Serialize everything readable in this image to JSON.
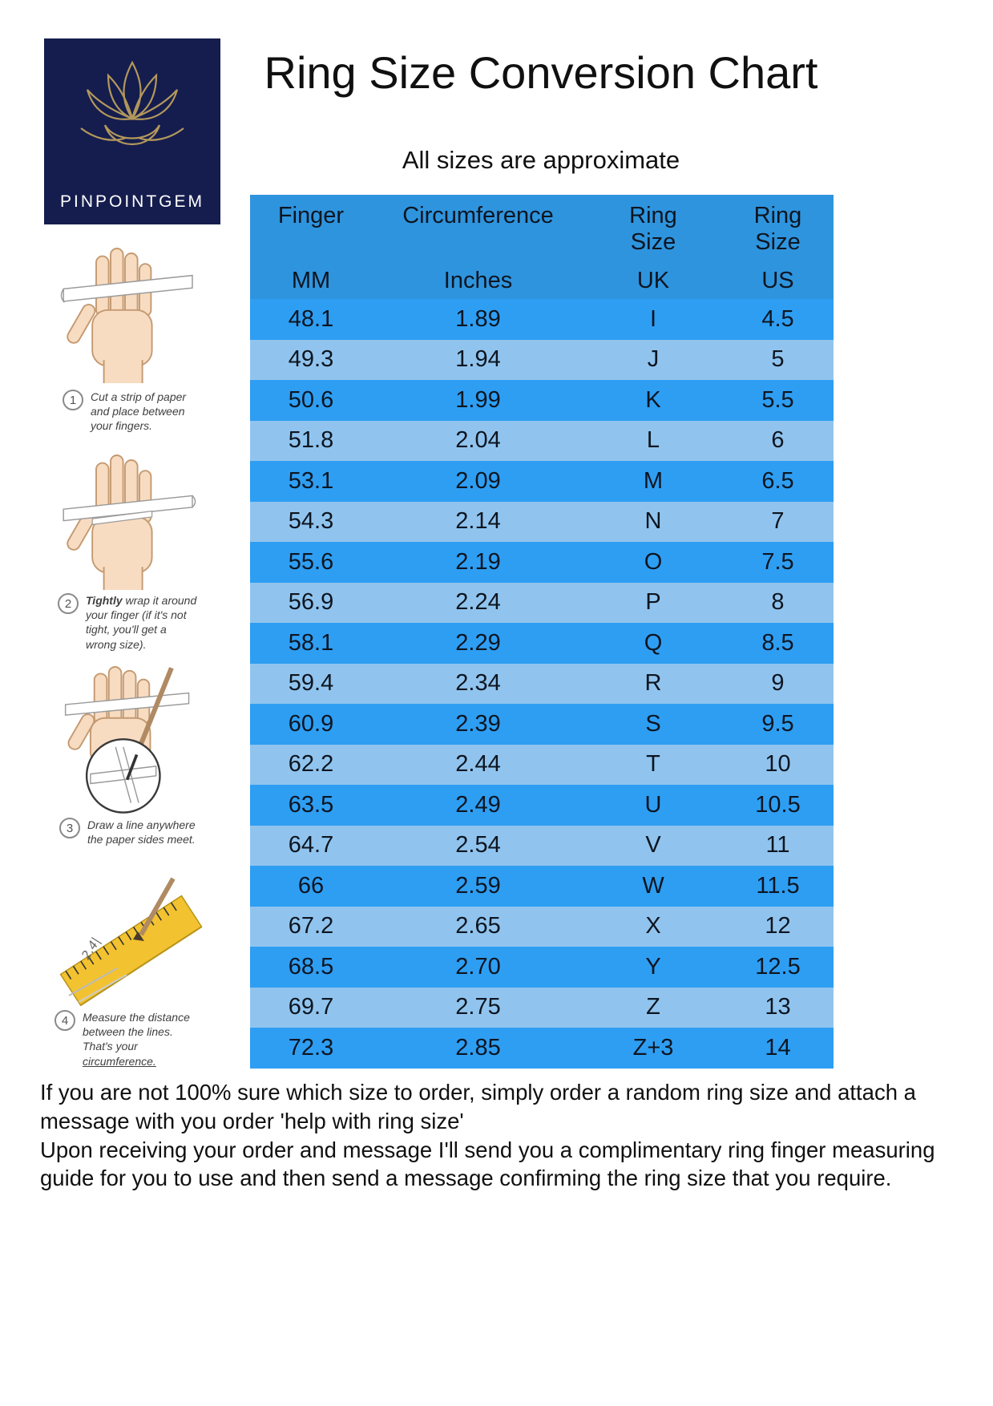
{
  "colors": {
    "logo_navy": "#151d4e",
    "logo_gold": "#b3985c",
    "header_blue": "#2f94de",
    "row_dark": "#2e9ef3",
    "row_light": "#90c4ee"
  },
  "logo": {
    "brand": "PINPOINTGEM"
  },
  "header": {
    "title": "Ring Size Conversion Chart",
    "subtitle": "All sizes are approximate"
  },
  "table": {
    "headers": [
      {
        "top": "Finger",
        "bottom": "MM"
      },
      {
        "top": "Circumference",
        "bottom": "Inches"
      },
      {
        "top": "Ring\nSize",
        "bottom": "UK"
      },
      {
        "top": "Ring\nSize",
        "bottom": "US"
      }
    ]
  },
  "chart_data": {
    "type": "table",
    "title": "Ring Size Conversion Chart",
    "columns": [
      "Finger MM",
      "Circumference Inches",
      "Ring Size UK",
      "Ring Size US"
    ],
    "rows": [
      [
        "48.1",
        "1.89",
        "I",
        "4.5"
      ],
      [
        "49.3",
        "1.94",
        "J",
        "5"
      ],
      [
        "50.6",
        "1.99",
        "K",
        "5.5"
      ],
      [
        "51.8",
        "2.04",
        "L",
        "6"
      ],
      [
        "53.1",
        "2.09",
        "M",
        "6.5"
      ],
      [
        "54.3",
        "2.14",
        "N",
        "7"
      ],
      [
        "55.6",
        "2.19",
        "O",
        "7.5"
      ],
      [
        "56.9",
        "2.24",
        "P",
        "8"
      ],
      [
        "58.1",
        "2.29",
        "Q",
        "8.5"
      ],
      [
        "59.4",
        "2.34",
        "R",
        "9"
      ],
      [
        "60.9",
        "2.39",
        "S",
        "9.5"
      ],
      [
        "62.2",
        "2.44",
        "T",
        "10"
      ],
      [
        "63.5",
        "2.49",
        "U",
        "10.5"
      ],
      [
        "64.7",
        "2.54",
        "V",
        "11"
      ],
      [
        "66",
        "2.59",
        "W",
        "11.5"
      ],
      [
        "67.2",
        "2.65",
        "X",
        "12"
      ],
      [
        "68.5",
        "2.70",
        "Y",
        "12.5"
      ],
      [
        "69.7",
        "2.75",
        "Z",
        "13"
      ],
      [
        "72.3",
        "2.85",
        "Z+3",
        "14"
      ]
    ]
  },
  "steps": [
    {
      "num": "1",
      "bold": "",
      "text": "Cut a strip of paper and place between your fingers.",
      "underline": ""
    },
    {
      "num": "2",
      "bold": "Tightly",
      "text": " wrap it around your finger (if it's not tight, you'll get a wrong size).",
      "underline": ""
    },
    {
      "num": "3",
      "bold": "",
      "text": "Draw a line anywhere the paper sides meet.",
      "underline": ""
    },
    {
      "num": "4",
      "bold": "",
      "text": "Measure the distance between the lines. That's your ",
      "underline": "circumference."
    }
  ],
  "footer": {
    "lines": [
      "If you are not 100% sure which size to order, simply order a random ring size and attach a message with you order 'help with ring size'",
      "Upon receiving your order and message I'll send you a complimentary ring finger measuring guide for you to use and then send a message confirming the ring size that you require."
    ]
  }
}
